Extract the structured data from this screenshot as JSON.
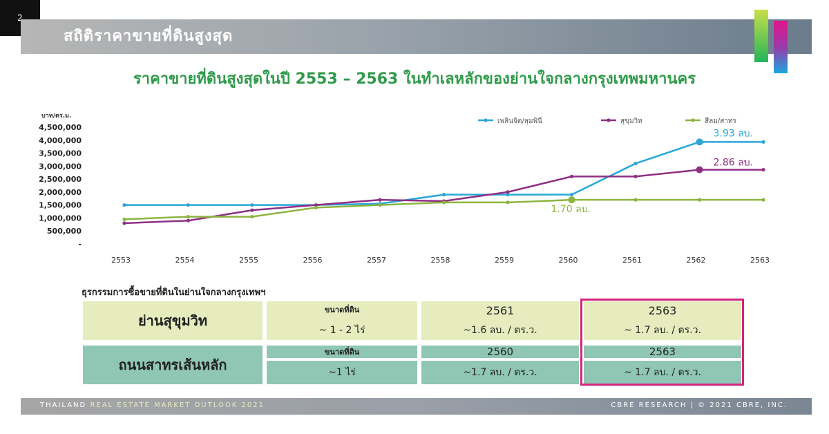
{
  "page": {
    "number": "2"
  },
  "header": {
    "title": "สถิติราคาขายที่ดินสูงสุด"
  },
  "subtitle": "ราคาขายที่ดินสูงสุดในปี 2553 – 2563 ในทำเลหลักของย่านใจกลางกรุงเทพมหานคร",
  "colors": {
    "series1": "#2aa7d8",
    "series2": "#8e2f83",
    "series3": "#8db43f",
    "title_green": "#2f9a4a",
    "highlight": "#d4237e"
  },
  "chart_data": {
    "type": "line",
    "ylabel": "บาท/ตร.ม.",
    "ylim": [
      0,
      4500000
    ],
    "y_ticks": [
      "-",
      "500,000",
      "1,000,000",
      "1,500,000",
      "2,000,000",
      "2,500,000",
      "3,000,000",
      "3,500,000",
      "4,000,000",
      "4,500,000"
    ],
    "categories": [
      "2553",
      "2554",
      "2555",
      "2556",
      "2557",
      "2558",
      "2559",
      "2560",
      "2561",
      "2562",
      "2563"
    ],
    "legend_position": "top-right",
    "grid": false,
    "series": [
      {
        "name": "เพลินจิต/ลุมพินี",
        "color": "#2aa7d8",
        "values": [
          1500000,
          1500000,
          1500000,
          1500000,
          1550000,
          1900000,
          1900000,
          1900000,
          3100000,
          3930000,
          3930000
        ],
        "highlight_index": 9,
        "annotation": "3.93 ลบ."
      },
      {
        "name": "สุขุมวิท",
        "color": "#8e2f83",
        "values": [
          800000,
          900000,
          1300000,
          1500000,
          1700000,
          1650000,
          2000000,
          2600000,
          2600000,
          2860000,
          2860000
        ],
        "highlight_index": 9,
        "annotation": "2.86 ลบ."
      },
      {
        "name": "สีลม/สาทร",
        "color": "#8db43f",
        "values": [
          950000,
          1050000,
          1050000,
          1400000,
          1500000,
          1600000,
          1600000,
          1700000,
          1700000,
          1700000,
          1700000
        ],
        "highlight_index": 7,
        "annotation": "1.70 ลบ."
      }
    ]
  },
  "table": {
    "heading": "ธุรกรรมการซื้อขายที่ดินในย่านใจกลางกรุงเทพฯ",
    "rows": [
      {
        "label": "ย่านสุขุมวิท",
        "size_label": "ขนาดที่ดิน",
        "size": "~ 1 - 2 ไร่",
        "year1": "2561",
        "price1": "~1.6 ลบ. / ตร.ว.",
        "year2": "2563",
        "price2": "~ 1.7 ลบ. / ตร.ว."
      },
      {
        "label": "ถนนสาทรเส้นหลัก",
        "size_label": "ขนาดที่ดิน",
        "size": "~1 ไร่",
        "year1": "2560",
        "price1": "~1.7 ลบ. / ตร.ว.",
        "year2": "2563",
        "price2": "~ 1.7 ลบ. / ตร.ว."
      }
    ]
  },
  "footer": {
    "left_main": "THAILAND",
    "left_accent": "REAL ESTATE MARKET OUTLOOK 2021",
    "right": "CBRE RESEARCH | © 2021 CBRE, INC."
  }
}
